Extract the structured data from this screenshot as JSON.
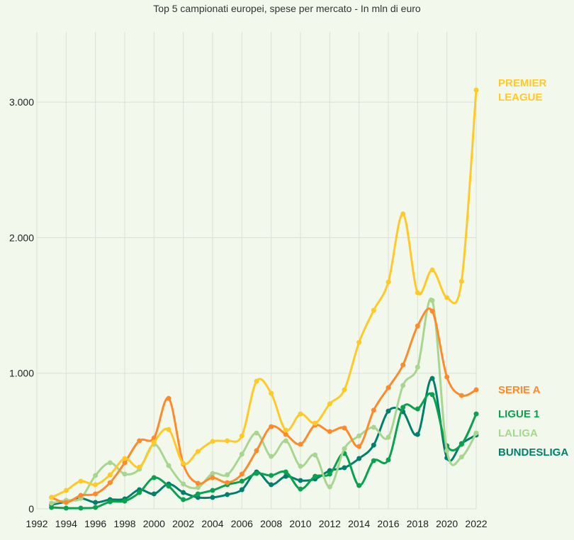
{
  "chart_data": {
    "type": "line",
    "title": "Top 5 campionati europei, spese per mercato - In mln di euro",
    "xlabel": "",
    "ylabel": "",
    "xlim": [
      1992,
      2022
    ],
    "ylim": [
      0,
      3500
    ],
    "x_ticks": [
      "1992",
      "1994",
      "1996",
      "1998",
      "2000",
      "2002",
      "2004",
      "2006",
      "2008",
      "2010",
      "2012",
      "2014",
      "2016",
      "2018",
      "2020",
      "2022"
    ],
    "y_ticks": [
      {
        "v": 0,
        "label": "0"
      },
      {
        "v": 1000,
        "label": "1.000"
      },
      {
        "v": 2000,
        "label": "2.000"
      },
      {
        "v": 3000,
        "label": "3.000"
      }
    ],
    "grid": true,
    "legend": "direct labels at right end of lines",
    "x": [
      1993,
      1994,
      1995,
      1996,
      1997,
      1998,
      1999,
      2000,
      2001,
      2002,
      2003,
      2004,
      2005,
      2006,
      2007,
      2008,
      2009,
      2010,
      2011,
      2012,
      2013,
      2014,
      2015,
      2016,
      2017,
      2018,
      2019,
      2020,
      2021,
      2022
    ],
    "series": [
      {
        "name": "PREMIER LEAGUE",
        "label_lines": [
          "PREMIER",
          "LEAGUE"
        ],
        "color": "#ffca28",
        "values": [
          84,
          136,
          204,
          178,
          251,
          371,
          308,
          492,
          585,
          335,
          423,
          497,
          502,
          538,
          941,
          852,
          580,
          700,
          632,
          774,
          878,
          1228,
          1464,
          1673,
          2175,
          1594,
          1762,
          1558,
          1678,
          3089
        ]
      },
      {
        "name": "SERIE A",
        "label_lines": [
          "SERIE A"
        ],
        "color": "#ff8a2b",
        "values": [
          84,
          47,
          99,
          110,
          193,
          340,
          502,
          523,
          815,
          329,
          188,
          230,
          193,
          256,
          429,
          606,
          549,
          476,
          617,
          570,
          596,
          460,
          727,
          894,
          1061,
          1349,
          1458,
          972,
          836,
          878
        ]
      },
      {
        "name": "LALIGA",
        "label_lines": [
          "LALIGA"
        ],
        "color": "#a8d590",
        "values": [
          42,
          63,
          78,
          246,
          340,
          256,
          293,
          476,
          319,
          183,
          157,
          261,
          251,
          403,
          559,
          387,
          502,
          314,
          397,
          162,
          444,
          538,
          601,
          528,
          910,
          1045,
          1537,
          429,
          382,
          559
        ]
      },
      {
        "name": "LIGUE 1",
        "label_lines": [
          "LIGUE 1"
        ],
        "color": "#0aa14f",
        "values": [
          10,
          5,
          5,
          10,
          52,
          57,
          120,
          230,
          167,
          68,
          110,
          136,
          178,
          204,
          261,
          246,
          272,
          146,
          240,
          256,
          408,
          172,
          355,
          361,
          748,
          737,
          842,
          465,
          476,
          700
        ]
      },
      {
        "name": "BUNDESLIGA",
        "label_lines": [
          "BUNDESLIGA"
        ],
        "color": "#00806a",
        "values": [
          31,
          52,
          78,
          47,
          68,
          73,
          141,
          110,
          183,
          120,
          84,
          84,
          105,
          141,
          272,
          178,
          240,
          209,
          220,
          282,
          303,
          371,
          470,
          721,
          716,
          549,
          962,
          376,
          481,
          544
        ]
      }
    ]
  }
}
